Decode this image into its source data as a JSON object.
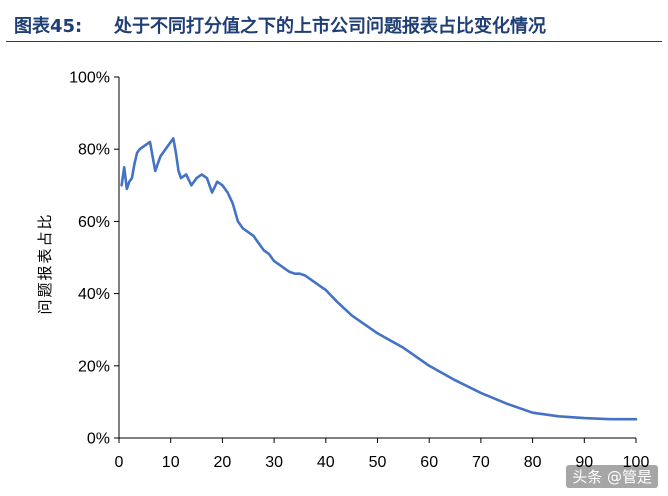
{
  "figure": {
    "number": "图表45:",
    "title": "处于不同打分值之下的上市公司问题报表占比变化情况",
    "accent_color": "#1f3f74"
  },
  "watermark": "头条 @管是",
  "chart_data": {
    "type": "line",
    "title": "处于不同打分值之下的上市公司问题报表占比变化情况",
    "xlabel": "",
    "ylabel": "问题报表占比",
    "xlim": [
      0,
      100
    ],
    "ylim": [
      0,
      1
    ],
    "x_ticks": [
      0,
      10,
      20,
      30,
      40,
      50,
      60,
      70,
      80,
      90,
      100
    ],
    "y_ticks": [
      0,
      0.2,
      0.4,
      0.6,
      0.8,
      1.0
    ],
    "y_tick_labels": [
      "0%",
      "20%",
      "40%",
      "60%",
      "80%",
      "100%"
    ],
    "grid": false,
    "legend": "none",
    "line_color": "#4472c4",
    "series": [
      {
        "x": [
          0.5,
          1,
          1.5,
          2,
          2.5,
          3,
          3.5,
          4,
          5,
          6,
          7,
          8,
          9,
          10,
          10.5,
          11,
          11.5,
          12,
          13,
          14,
          15,
          16,
          17,
          18,
          19,
          20,
          21,
          22,
          23,
          24,
          25,
          26,
          27,
          28,
          29,
          30,
          31,
          32,
          33,
          34,
          35,
          36,
          37,
          38,
          39,
          40,
          42,
          45,
          50,
          55,
          60,
          65,
          70,
          75,
          80,
          85,
          90,
          95,
          100
        ],
        "values": [
          0.7,
          0.75,
          0.69,
          0.71,
          0.72,
          0.76,
          0.79,
          0.8,
          0.81,
          0.82,
          0.74,
          0.78,
          0.8,
          0.82,
          0.83,
          0.79,
          0.74,
          0.72,
          0.73,
          0.7,
          0.72,
          0.73,
          0.72,
          0.68,
          0.71,
          0.7,
          0.68,
          0.65,
          0.6,
          0.58,
          0.57,
          0.56,
          0.54,
          0.52,
          0.51,
          0.49,
          0.48,
          0.47,
          0.46,
          0.455,
          0.455,
          0.45,
          0.44,
          0.43,
          0.42,
          0.41,
          0.38,
          0.34,
          0.29,
          0.25,
          0.2,
          0.16,
          0.125,
          0.095,
          0.07,
          0.06,
          0.055,
          0.052,
          0.052
        ]
      }
    ]
  }
}
